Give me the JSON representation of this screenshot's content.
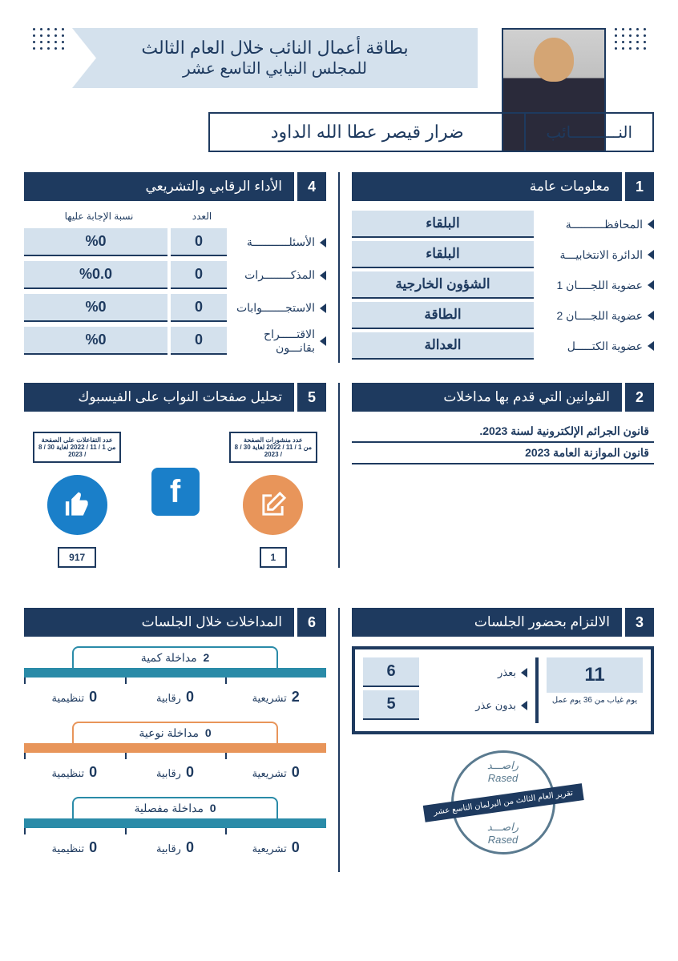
{
  "header": {
    "title_line1": "بطاقة أعمال النائب خلال العام الثالث",
    "title_line2": "للمجلس النيابي التاسع عشر",
    "mp_label": "النــــــــــائب",
    "mp_name": "ضرار قيصر عطا الله الداود"
  },
  "colors": {
    "primary": "#1e3a5f",
    "light_blue": "#d4e1ed",
    "fb_blue": "#1a7fc9",
    "orange": "#e8955a",
    "teal": "#2a8ba8",
    "stamp": "#5a7a8f"
  },
  "sec1": {
    "num": "1",
    "title": "معلومات عامة",
    "rows": [
      {
        "label": "المحافظــــــــــة",
        "value": "البلقاء"
      },
      {
        "label": "الدائرة الانتخابيـــة",
        "value": "البلقاء"
      },
      {
        "label": "عضوية اللجــــان 1",
        "value": "الشؤون الخارجية"
      },
      {
        "label": "عضوية اللجــــان 2",
        "value": "الطاقة"
      },
      {
        "label": "عضوية الكتـــــل",
        "value": "العدالة"
      }
    ]
  },
  "sec2": {
    "num": "2",
    "title": "القوانين التي قدم بها مداخلات",
    "laws": [
      "قانون الجرائم الإلكترونية لسنة 2023.",
      "قانون الموازنة العامة 2023"
    ]
  },
  "sec3": {
    "num": "3",
    "title": "الالتزام بحضور الجلسات",
    "absence_days": "11",
    "absence_label": "يوم غياب من 36 يوم عمل",
    "rows": [
      {
        "label": "بعذر",
        "value": "6"
      },
      {
        "label": "بدون عذر",
        "value": "5"
      }
    ]
  },
  "sec4": {
    "num": "4",
    "title": "الأداء الرقابي والتشريعي",
    "head_count": "العدد",
    "head_pct": "نسبة الإجابة عليها",
    "rows": [
      {
        "label": "الأسئلـــــــــــة",
        "count": "0",
        "pct": "%0"
      },
      {
        "label": "المذكــــــــرات",
        "count": "0",
        "pct": "%0.0"
      },
      {
        "label": "الاستجـــــــوابات",
        "count": "0",
        "pct": "%0"
      },
      {
        "label": "الاقتـــــراح بقانـــون",
        "count": "0",
        "pct": "%0"
      }
    ]
  },
  "sec5": {
    "num": "5",
    "title": "تحليل صفحات النواب على الفيسبوك",
    "posts": {
      "label": "عدد منشورات الصفحة",
      "sub": "من 1 / 11 / 2022 لغاية 30 / 8 / 2023",
      "value": "1"
    },
    "interactions": {
      "label": "عدد التفاعلات على الصفحة",
      "sub": "من 1 / 11 / 2022 لغاية 30 / 8 / 2023",
      "value": "917"
    }
  },
  "sec6": {
    "num": "6",
    "title": "المداخلات خلال الجلسات",
    "blocks": [
      {
        "color": "#2a8ba8",
        "total_n": "2",
        "total_label": "مداخلة كمية",
        "cells": [
          {
            "n": "2",
            "l": "تشريعية"
          },
          {
            "n": "0",
            "l": "رقابية"
          },
          {
            "n": "0",
            "l": "تنظيمية"
          }
        ]
      },
      {
        "color": "#e8955a",
        "total_n": "0",
        "total_label": "مداخلة نوعية",
        "cells": [
          {
            "n": "0",
            "l": "تشريعية"
          },
          {
            "n": "0",
            "l": "رقابية"
          },
          {
            "n": "0",
            "l": "تنظيمية"
          }
        ]
      },
      {
        "color": "#2a8ba8",
        "total_n": "0",
        "total_label": "مداخلة مفصلية",
        "cells": [
          {
            "n": "0",
            "l": "تشريعية"
          },
          {
            "n": "0",
            "l": "رقابية"
          },
          {
            "n": "0",
            "l": "تنظيمية"
          }
        ]
      }
    ]
  },
  "stamp": {
    "top_ar": "راصـــد",
    "top_en": "Rased",
    "banner": "تقرير العام الثالث من البرلمان التاسع عشر",
    "bot_ar": "راصـــد",
    "bot_en": "Rased"
  }
}
